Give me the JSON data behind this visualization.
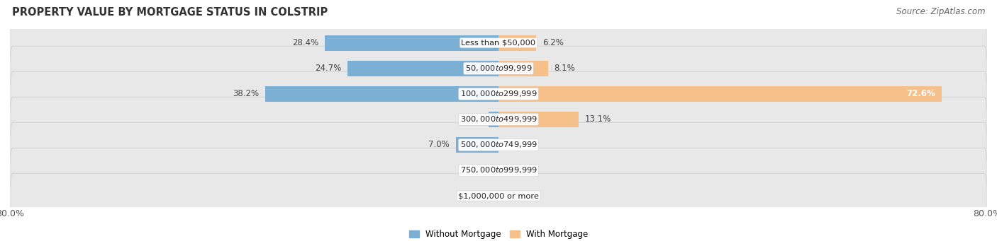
{
  "title": "PROPERTY VALUE BY MORTGAGE STATUS IN COLSTRIP",
  "source": "Source: ZipAtlas.com",
  "categories": [
    "Less than $50,000",
    "$50,000 to $99,999",
    "$100,000 to $299,999",
    "$300,000 to $499,999",
    "$500,000 to $749,999",
    "$750,000 to $999,999",
    "$1,000,000 or more"
  ],
  "without_mortgage": [
    28.4,
    24.7,
    38.2,
    1.6,
    7.0,
    0.0,
    0.0
  ],
  "with_mortgage": [
    6.2,
    8.1,
    72.6,
    13.1,
    0.0,
    0.0,
    0.0
  ],
  "xlim": 80.0,
  "bar_color_left": "#7BAFD4",
  "bar_color_right": "#F5C08A",
  "bg_row_color": "#E8E8E8",
  "bg_row_border": "#D0D0D0",
  "title_fontsize": 10.5,
  "label_fontsize": 8.5,
  "tick_fontsize": 9,
  "source_fontsize": 8.5,
  "legend_label_left": "Without Mortgage",
  "legend_label_right": "With Mortgage",
  "title_color": "#333333",
  "label_color": "#444444"
}
